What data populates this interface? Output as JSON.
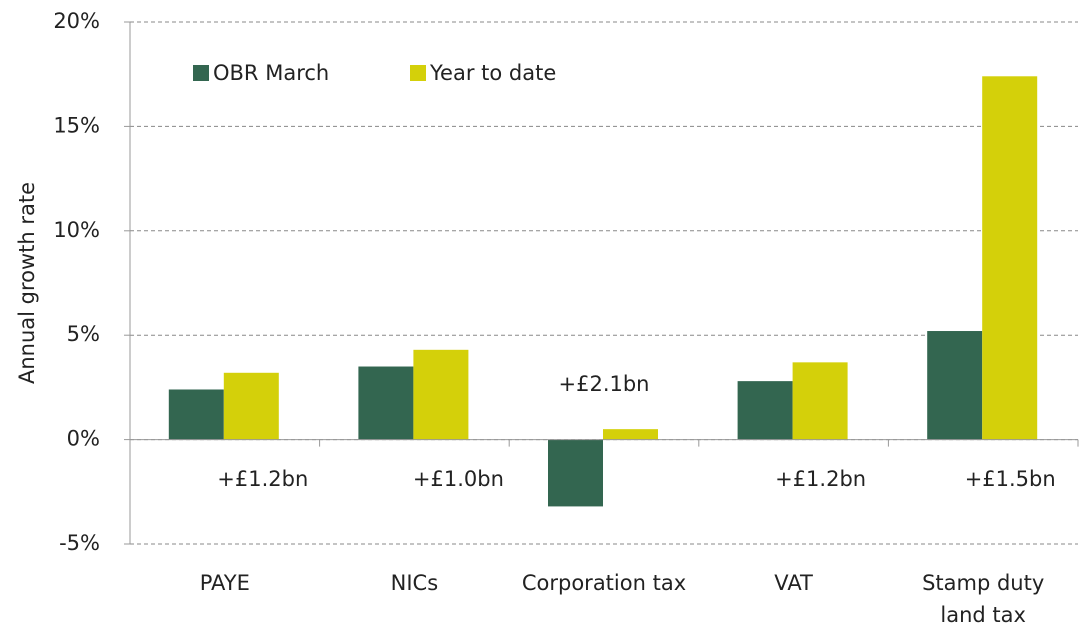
{
  "chart_data": {
    "type": "bar",
    "y_label": "Annual growth rate",
    "categories": [
      "PAYE",
      "NICs",
      "Corporation tax",
      "VAT",
      "Stamp duty land tax"
    ],
    "series": [
      {
        "name": "OBR March",
        "color": "#336650",
        "values": [
          2.4,
          3.5,
          -3.2,
          2.8,
          5.2
        ]
      },
      {
        "name": "Year to date",
        "color": "#d4d00a",
        "values": [
          3.2,
          4.3,
          0.5,
          3.7,
          17.4
        ]
      }
    ],
    "annotations": [
      "+£1.2bn",
      "+£1.0bn",
      "+£2.1bn",
      "+£1.2bn",
      "+£1.5bn"
    ],
    "ylim": [
      -5,
      20
    ],
    "yticks": [
      {
        "value": -5,
        "label": "-5%"
      },
      {
        "value": 0,
        "label": "0%"
      },
      {
        "value": 5,
        "label": "5%"
      },
      {
        "value": 10,
        "label": "10%"
      },
      {
        "value": 15,
        "label": "15%"
      },
      {
        "value": 20,
        "label": "20%"
      }
    ],
    "grid": true,
    "legend": "top-left"
  }
}
